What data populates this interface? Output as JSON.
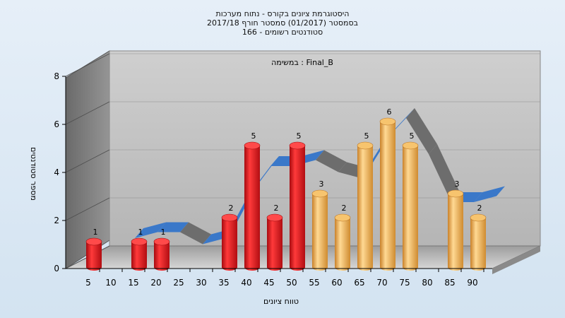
{
  "title_lines": [
    "היסטוגרמת ציונים בקורס - נתוח מערכות",
    "בסמסטר  (01/2017)  סמסטר חורף 2017/18",
    "סטודנטים רשומים - 166"
  ],
  "chart_data": {
    "type": "bar",
    "annotation": "במשימה : Final_B",
    "xlabel": "טווח ציונים",
    "ylabel": "מספר סטודנטים",
    "categories": [
      "5",
      "10",
      "15",
      "20",
      "25",
      "30",
      "35",
      "40",
      "45",
      "50",
      "55",
      "60",
      "65",
      "70",
      "75",
      "80",
      "85",
      "90"
    ],
    "values": [
      1,
      0,
      1,
      1,
      0,
      0,
      2,
      5,
      2,
      5,
      3,
      2,
      5,
      6,
      5,
      0,
      3,
      2
    ],
    "ylim": [
      0,
      8
    ],
    "yticks": [
      0,
      2,
      4,
      6,
      8
    ],
    "grid": true,
    "colors": {
      "fail": "#e0161b",
      "pass": "#f0a840",
      "trend": "#3a78c9",
      "trend_dark": "#6d6d6d"
    }
  }
}
